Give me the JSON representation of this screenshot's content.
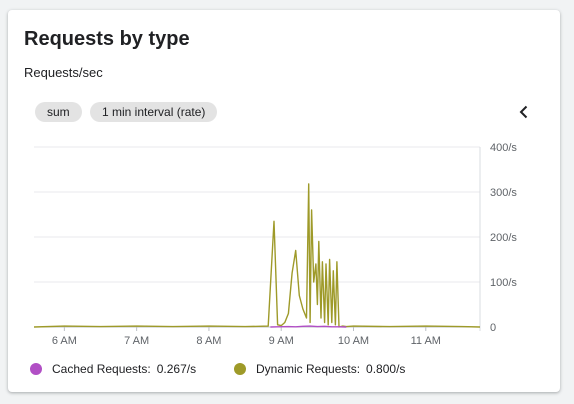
{
  "card": {
    "title": "Requests by type",
    "subtitle": "Requests/sec"
  },
  "chips": {
    "aggregation": "sum",
    "interval": "1 min interval (rate)"
  },
  "icons": {
    "collapse": "chevron-left-icon"
  },
  "colors": {
    "cached": "#b14fc5",
    "dynamic": "#9e9a29",
    "grid": "#e8eaed",
    "axis_text": "#5f6368"
  },
  "legend": {
    "cached_label": "Cached Requests:",
    "cached_value": "0.267/s",
    "dynamic_label": "Dynamic Requests:",
    "dynamic_value": "0.800/s"
  },
  "chart_data": {
    "type": "line",
    "x_ticks": [
      "6 AM",
      "7 AM",
      "8 AM",
      "9 AM",
      "10 AM",
      "11 AM"
    ],
    "x_tick_hours": [
      6,
      7,
      8,
      9,
      10,
      11
    ],
    "xlim": [
      5.58,
      11.75
    ],
    "y_ticks": [
      "0",
      "100/s",
      "200/s",
      "300/s",
      "400/s"
    ],
    "y_tick_values": [
      0,
      100,
      200,
      300,
      400
    ],
    "ylim": [
      0,
      400
    ],
    "grid": true,
    "legend_position": "bottom",
    "series": [
      {
        "name": "Cached Requests",
        "color": "#b14fc5",
        "x": [
          8.85,
          8.95,
          9.1,
          9.2,
          9.3,
          9.4,
          9.5,
          9.6,
          9.7,
          9.8,
          9.9
        ],
        "y": [
          0,
          0.5,
          1,
          0.5,
          1.5,
          2,
          1,
          1.5,
          0.5,
          0.5,
          0
        ]
      },
      {
        "name": "Dynamic Requests",
        "color": "#9e9a29",
        "x": [
          5.58,
          6.0,
          6.5,
          7.0,
          7.5,
          8.0,
          8.5,
          8.82,
          8.9,
          8.95,
          9.0,
          9.05,
          9.1,
          9.15,
          9.2,
          9.25,
          9.3,
          9.35,
          9.38,
          9.4,
          9.42,
          9.45,
          9.48,
          9.5,
          9.52,
          9.55,
          9.57,
          9.6,
          9.62,
          9.65,
          9.67,
          9.7,
          9.72,
          9.75,
          9.77,
          9.8,
          9.85,
          9.9,
          10.0,
          10.5,
          11.0,
          11.5,
          11.75
        ],
        "y": [
          0,
          2,
          1,
          2,
          1,
          2,
          1,
          2,
          235,
          5,
          3,
          10,
          30,
          120,
          170,
          70,
          40,
          20,
          318,
          10,
          260,
          100,
          140,
          50,
          190,
          20,
          145,
          10,
          140,
          5,
          150,
          10,
          125,
          5,
          145,
          0,
          2,
          1,
          2,
          1,
          2,
          1,
          0
        ]
      }
    ]
  }
}
